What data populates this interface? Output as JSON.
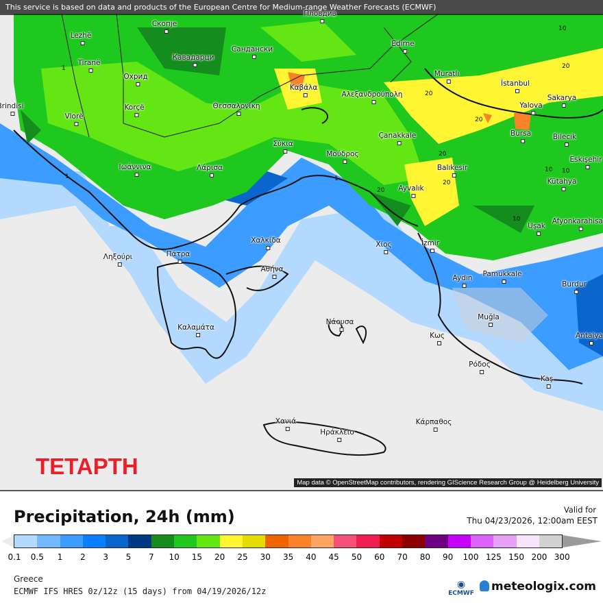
{
  "banner": "This service is based on data and products of the European Centre for Medium-range Weather Forecasts (ECMWF)",
  "attribution": "Map data © OpenStreetMap contributors, rendering GIScience Research Group @ Heidelberg University",
  "day_label": "ΤΕΤΑΡΤΗ",
  "cities": [
    "Lezhë",
    "Скопје",
    "Пловдив",
    "Tiranë",
    "Охрид",
    "Кавадарци",
    "Сандански",
    "Edirne",
    "Muratlı",
    "İstanbul",
    "Korçë",
    "Θεσσαλονίκη",
    "Καβάλα",
    "Αλεξανδρούπολη",
    "Yalova",
    "Sakarya",
    "Vlorë",
    "Σύκια",
    "Çanakkale",
    "Bursa",
    "Bilecik",
    "Ιωάννινα",
    "Λάρισα",
    "Μούδρος",
    "Balıkesir",
    "Eskişehir",
    "Kütahya",
    "Ayvalık",
    "Uşak",
    "Afyonkarahisar",
    "Χαλκίδα",
    "Χίος",
    "İzmir",
    "Ληξούρι",
    "Πάτρα",
    "Αθήνα",
    "Aydın",
    "Pamukkale",
    "Burdur",
    "Muğla",
    "Καλαμάτα",
    "Νάουσα",
    "Κως",
    "Antalya",
    "Ρόδος",
    "Kaş",
    "Χανιά",
    "Ηράκλειο",
    "Κάρπαθος",
    "Brindisi"
  ],
  "contour_labels": [
    "10",
    "20",
    "20",
    "20",
    "10",
    "10",
    "20",
    "20",
    "1",
    "1",
    "1",
    "10",
    "20"
  ],
  "legend": {
    "title": "Precipitation, 24h (mm)",
    "valid_label": "Valid for",
    "valid_time": "Thu 04/23/2026, 12:00am EEST",
    "colors": [
      "#b3d9ff",
      "#73b9ff",
      "#3c9cff",
      "#0a80ff",
      "#0a66cc",
      "#003a85",
      "#148c1e",
      "#1ec81e",
      "#64e614",
      "#fff532",
      "#e6dc00",
      "#f06400",
      "#fa8228",
      "#ffa564",
      "#f55078",
      "#f01e50",
      "#be0000",
      "#8c0000",
      "#6e0082",
      "#c800ff",
      "#dc64fa",
      "#e6a0f5",
      "#f8e4fc",
      "#d2d2d2"
    ],
    "ticks": [
      "0.1",
      "0.5",
      "1",
      "2",
      "3",
      "5",
      "7",
      "10",
      "15",
      "20",
      "25",
      "30",
      "35",
      "40",
      "45",
      "50",
      "60",
      "70",
      "80",
      "90",
      "100",
      "125",
      "150",
      "200",
      "300"
    ],
    "over_color": "#9a9a9a",
    "under_color": "#ececec"
  },
  "footer": {
    "region": "Greece",
    "model": "ECMWF IFS HRES 0z/12z (15 days) from  04/19/2026/12z",
    "ecmwf_logo": "ECMWF",
    "brand": "meteologix.com"
  }
}
